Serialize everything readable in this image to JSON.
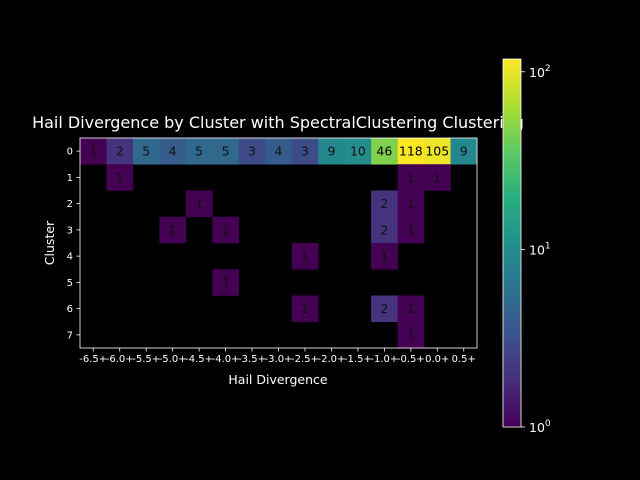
{
  "chart_data": {
    "type": "heatmap",
    "title": "Hail Divergence by Cluster with SpectralClustering Clustering",
    "xlabel": "Hail Divergence",
    "ylabel": "Cluster",
    "x_categories": [
      "-6.5+",
      "-6.0+",
      "-5.5+",
      "-5.0+",
      "-4.5+",
      "-4.0+",
      "-3.5+",
      "-3.0+",
      "-2.5+",
      "-2.0+",
      "-1.5+",
      "-1.0+",
      "-0.5+",
      "0.0+",
      "0.5+"
    ],
    "y_categories": [
      "0",
      "1",
      "2",
      "3",
      "4",
      "5",
      "6",
      "7"
    ],
    "values": [
      [
        1,
        2,
        5,
        4,
        5,
        5,
        3,
        4,
        3,
        9,
        10,
        46,
        118,
        105,
        9
      ],
      [
        null,
        1,
        null,
        null,
        null,
        null,
        null,
        null,
        null,
        null,
        null,
        null,
        1,
        1,
        null
      ],
      [
        null,
        null,
        null,
        null,
        1,
        null,
        null,
        null,
        null,
        null,
        null,
        2,
        1,
        null,
        null
      ],
      [
        null,
        null,
        null,
        1,
        null,
        1,
        null,
        null,
        null,
        null,
        null,
        2,
        1,
        null,
        null
      ],
      [
        null,
        null,
        null,
        null,
        null,
        null,
        null,
        null,
        1,
        null,
        null,
        1,
        null,
        null,
        null
      ],
      [
        null,
        null,
        null,
        null,
        null,
        1,
        null,
        null,
        null,
        null,
        null,
        null,
        null,
        null,
        null
      ],
      [
        null,
        null,
        null,
        null,
        null,
        null,
        null,
        null,
        1,
        null,
        null,
        2,
        1,
        null,
        null
      ],
      [
        null,
        null,
        null,
        null,
        null,
        null,
        null,
        null,
        null,
        null,
        null,
        null,
        1,
        null,
        null
      ]
    ],
    "colorscale": "viridis",
    "color_scale_type": "log",
    "color_range": [
      1,
      118
    ],
    "colorbar_ticks": [
      "10^0",
      "10^1",
      "10^2"
    ],
    "colorbar_tick_values": [
      1,
      10,
      100
    ],
    "background": "#000000"
  }
}
